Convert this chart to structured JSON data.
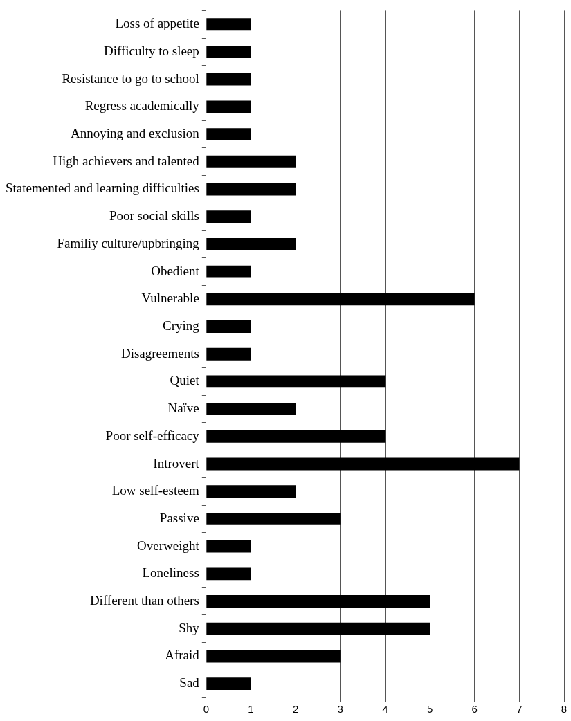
{
  "chart_data": {
    "type": "bar",
    "orientation": "horizontal",
    "categories": [
      "Loss of appetite",
      "Difficulty to sleep",
      "Resistance to go to school",
      "Regress academically",
      "Annoying and exclusion",
      "High achievers and talented",
      "Statemented and learning difficulties",
      "Poor social skills",
      "Familiy culture/upbringing",
      "Obedient",
      "Vulnerable",
      "Crying",
      "Disagreements",
      "Quiet",
      "Naïve",
      "Poor self-efficacy",
      "Introvert",
      "Low self-esteem",
      "Passive",
      "Overweight",
      "Loneliness",
      "Different than others",
      "Shy",
      "Afraid",
      "Sad"
    ],
    "values": [
      1,
      1,
      1,
      1,
      1,
      2,
      2,
      1,
      2,
      1,
      6,
      1,
      1,
      4,
      2,
      4,
      7,
      2,
      3,
      1,
      1,
      5,
      5,
      3,
      1
    ],
    "color": "#000000",
    "xlim": [
      0,
      8
    ],
    "xticks": [
      0,
      1,
      2,
      3,
      4,
      5,
      6,
      7,
      8
    ],
    "grid": "x",
    "legend": false
  }
}
